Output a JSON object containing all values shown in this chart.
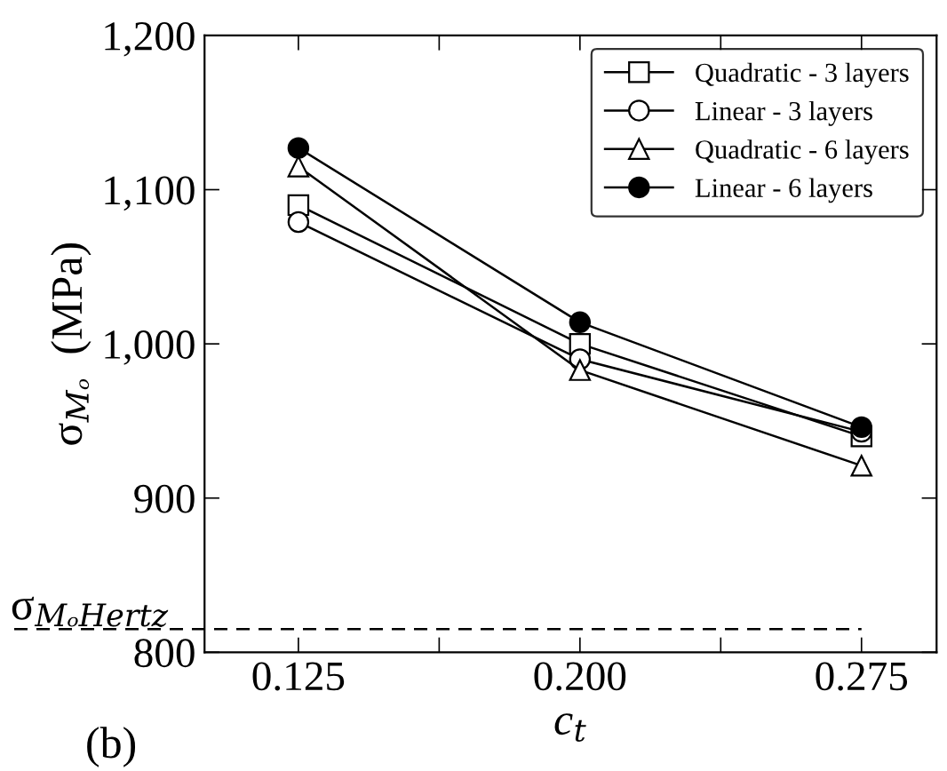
{
  "chart_data": {
    "type": "line",
    "xlabel": "c$_{t}$",
    "ylabel": "σ$_{Mₒ}$  (MPa)",
    "x": [
      0.125,
      0.2,
      0.275
    ],
    "series": [
      {
        "name": "Quadratic - 3 layers",
        "color": "#000000",
        "marker": "square",
        "colors": [
          "#ffffff",
          "#ffffff",
          "#ffffff"
        ],
        "values": [
          1090,
          1000,
          940
        ]
      },
      {
        "name": "Linear - 3 layers",
        "color": "#000000",
        "marker": "circle",
        "colors": [
          "#ffffff",
          "#ffffff",
          "#ffffff"
        ],
        "values": [
          1079,
          990,
          943
        ]
      },
      {
        "name": "Quadratic - 6 layers",
        "color": "#000000",
        "marker": "triangle",
        "colors": [
          "#ffffff",
          "#ffffff",
          "#ffffff"
        ],
        "values": [
          1115,
          983,
          921
        ]
      },
      {
        "name": "Linear - 6 layers",
        "color": "#000000",
        "marker": "circle",
        "colors": [
          "#000000",
          "#000000",
          "#000000"
        ],
        "values": [
          1127,
          1014,
          946
        ]
      }
    ],
    "xlim": [
      0.1,
      0.295
    ],
    "xticks": [
      {
        "value": 0.125,
        "label": "0.125"
      },
      {
        "value": 0.1625,
        "label": null
      },
      {
        "value": 0.2,
        "label": "0.200"
      },
      {
        "value": 0.2375,
        "label": null
      },
      {
        "value": 0.275,
        "label": "0.275"
      }
    ],
    "ylim": [
      800,
      1200
    ],
    "yticks": [
      {
        "value": 800,
        "label": "800"
      },
      {
        "value": 900,
        "label": "900"
      },
      {
        "value": 1000,
        "label": "1,000"
      },
      {
        "value": 1100,
        "label": "1,100"
      },
      {
        "value": 1200,
        "label": "1,200"
      }
    ],
    "ref_lines": [
      {
        "axis": "y",
        "value": 815,
        "label": "σ$_{MₒHertz}$",
        "color": "#000000",
        "line_style": "dashed"
      }
    ],
    "annotations": [
      "(b)"
    ],
    "legend": "top right",
    "grid": false,
    "line_style": "solid"
  }
}
